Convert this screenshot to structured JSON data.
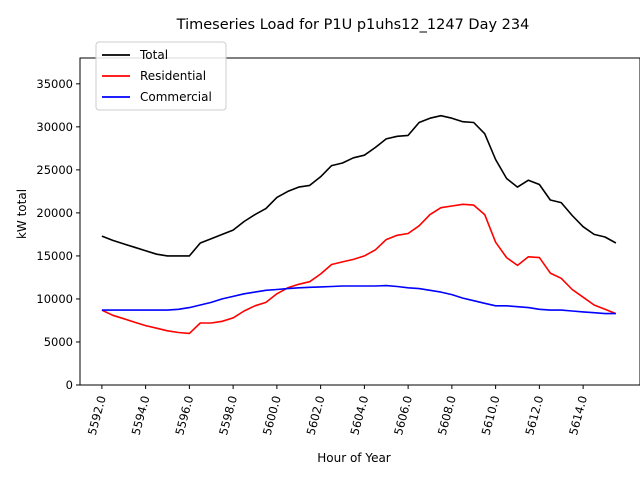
{
  "chart_data": {
    "type": "line",
    "title": "Timeseries Load for P1U p1uhs12_1247  Day 234",
    "xlabel": "Hour of Year",
    "ylabel": "kW total",
    "xlim": [
      5591.0,
      5616.6
    ],
    "ylim": [
      0,
      38000
    ],
    "xticks": [
      5592,
      5594,
      5596,
      5598,
      5600,
      5602,
      5604,
      5606,
      5608,
      5610,
      5612,
      5614
    ],
    "xtick_labels": [
      "5592.0",
      "5594.0",
      "5596.0",
      "5598.0",
      "5600.0",
      "5602.0",
      "5604.0",
      "5606.0",
      "5608.0",
      "5610.0",
      "5612.0",
      "5614.0"
    ],
    "yticks": [
      0,
      5000,
      10000,
      15000,
      20000,
      25000,
      30000,
      35000
    ],
    "ytick_labels": [
      "0",
      "5000",
      "10000",
      "15000",
      "20000",
      "25000",
      "30000",
      "35000"
    ],
    "legend_position": "top-left",
    "grid": false,
    "x": [
      5592.0,
      5592.5,
      5593.0,
      5593.5,
      5594.0,
      5594.5,
      5595.0,
      5595.5,
      5596.0,
      5596.5,
      5597.0,
      5597.5,
      5598.0,
      5598.5,
      5599.0,
      5599.5,
      5600.0,
      5600.5,
      5601.0,
      5601.5,
      5602.0,
      5602.5,
      5603.0,
      5603.5,
      5604.0,
      5604.5,
      5605.0,
      5605.5,
      5606.0,
      5606.5,
      5607.0,
      5607.5,
      5608.0,
      5608.5,
      5609.0,
      5609.5,
      5610.0,
      5610.5,
      5611.0,
      5611.5,
      5612.0,
      5612.5,
      5613.0,
      5613.5,
      5614.0,
      5614.5,
      5615.0,
      5615.5
    ],
    "series": [
      {
        "name": "Total",
        "color": "#000000",
        "values": [
          17300,
          16800,
          16400,
          16000,
          15600,
          15200,
          15000,
          15000,
          15000,
          16500,
          17000,
          17500,
          18000,
          19000,
          19800,
          20500,
          21800,
          22500,
          23000,
          23200,
          24200,
          25500,
          25800,
          26400,
          26700,
          27600,
          28600,
          28900,
          29000,
          30500,
          31000,
          31300,
          31000,
          30600,
          30500,
          29200,
          26200,
          24000,
          23000,
          23800,
          23300,
          21500,
          21200,
          19700,
          18400,
          17500,
          17200,
          16500
        ]
      },
      {
        "name": "Residential",
        "color": "#ff0000",
        "values": [
          8700,
          8100,
          7700,
          7300,
          6900,
          6600,
          6300,
          6100,
          6000,
          7200,
          7200,
          7400,
          7800,
          8600,
          9200,
          9600,
          10600,
          11300,
          11700,
          12000,
          12900,
          14000,
          14300,
          14600,
          15000,
          15700,
          16900,
          17400,
          17600,
          18500,
          19800,
          20600,
          20800,
          21000,
          20900,
          19800,
          16600,
          14800,
          13900,
          14900,
          14800,
          13000,
          12400,
          11100,
          10200,
          9300,
          8800,
          8300
        ]
      },
      {
        "name": "Commercial",
        "color": "#0000ff",
        "values": [
          8700,
          8700,
          8700,
          8700,
          8700,
          8700,
          8700,
          8800,
          9000,
          9300,
          9600,
          10000,
          10300,
          10600,
          10800,
          11000,
          11100,
          11200,
          11300,
          11350,
          11400,
          11450,
          11500,
          11500,
          11500,
          11500,
          11550,
          11450,
          11300,
          11200,
          11000,
          10800,
          10500,
          10100,
          9800,
          9500,
          9200,
          9200,
          9100,
          9000,
          8800,
          8700,
          8700,
          8600,
          8500,
          8400,
          8300,
          8300
        ]
      }
    ]
  }
}
